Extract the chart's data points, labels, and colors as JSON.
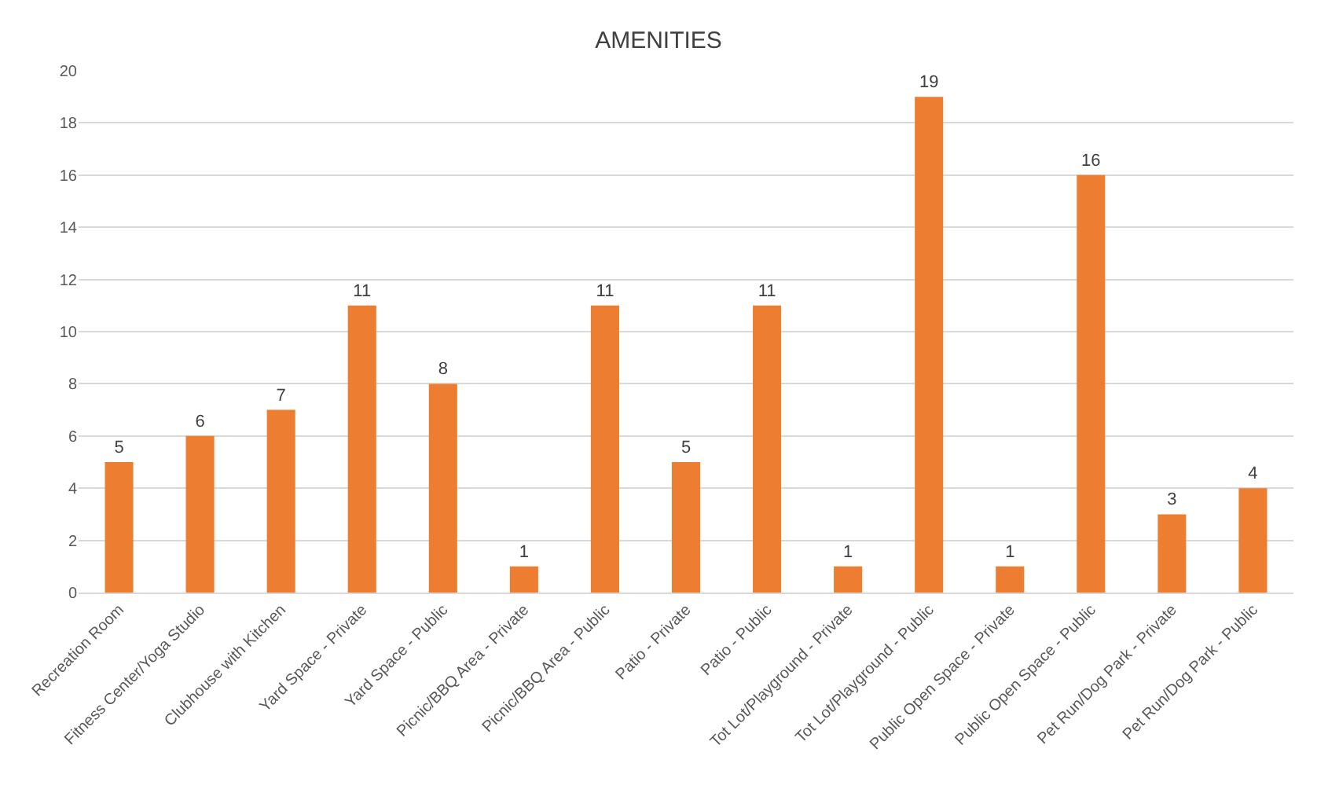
{
  "chart_data": {
    "type": "bar",
    "title": "AMENITIES",
    "categories": [
      "Recreation Room",
      "Fitness Center/Yoga Studio",
      "Clubhouse with Kitchen",
      "Yard Space - Private",
      "Yard Space - Public",
      "Picnic/BBQ Area - Private",
      "Picnic/BBQ Area - Public",
      "Patio - Private",
      "Patio - Public",
      "Tot Lot/Playground - Private",
      "Tot Lot/Playground - Public",
      "Public Open Space - Private",
      "Public Open Space - Public",
      "Pet Run/Dog Park - Private",
      "Pet Run/Dog Park - Public"
    ],
    "values": [
      5,
      6,
      7,
      11,
      8,
      1,
      11,
      5,
      11,
      1,
      19,
      1,
      16,
      3,
      4
    ],
    "color": "#ed7d31",
    "ylim": [
      0,
      20
    ],
    "yticks": [
      0,
      2,
      4,
      6,
      8,
      10,
      12,
      14,
      16,
      18,
      20
    ],
    "grid": "y",
    "data_labels": true
  }
}
